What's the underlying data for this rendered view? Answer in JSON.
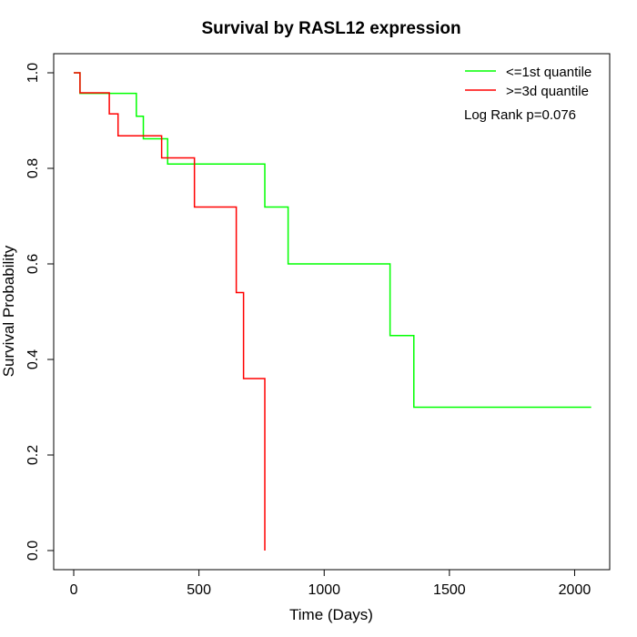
{
  "chart_data": {
    "type": "line",
    "title": "Survival by RASL12 expression",
    "xlabel": "Time (Days)",
    "ylabel": "Survival Probability",
    "xlim": [
      -80,
      2140
    ],
    "ylim": [
      -0.04,
      1.04
    ],
    "x_ticks": [
      0,
      500,
      1000,
      1500,
      2000
    ],
    "y_ticks": [
      0.0,
      0.2,
      0.4,
      0.6,
      0.8,
      1.0
    ],
    "x_tick_labels": [
      "0",
      "500",
      "1000",
      "1500",
      "2000"
    ],
    "y_tick_labels": [
      "0.0",
      "0.2",
      "0.4",
      "0.6",
      "0.8",
      "1.0"
    ],
    "grid": false,
    "legend_position": "top-right",
    "series": [
      {
        "name": "<=1st quantile",
        "color": "#00ff00",
        "step": true,
        "points": [
          [
            0,
            1.0
          ],
          [
            25,
            0.957
          ],
          [
            250,
            0.909
          ],
          [
            278,
            0.862
          ],
          [
            375,
            0.809
          ],
          [
            763,
            0.719
          ],
          [
            856,
            0.6
          ],
          [
            1263,
            0.45
          ],
          [
            1358,
            0.3
          ],
          [
            2066,
            0.3
          ]
        ]
      },
      {
        "name": ">=3d quantile",
        "color": "#ff0000",
        "step": true,
        "points": [
          [
            0,
            1.0
          ],
          [
            25,
            0.958
          ],
          [
            142,
            0.914
          ],
          [
            177,
            0.868
          ],
          [
            351,
            0.822
          ],
          [
            482,
            0.719
          ],
          [
            649,
            0.54
          ],
          [
            678,
            0.36
          ],
          [
            763,
            0.0
          ]
        ]
      }
    ],
    "annotations": [
      "Log Rank p=0.076"
    ]
  }
}
